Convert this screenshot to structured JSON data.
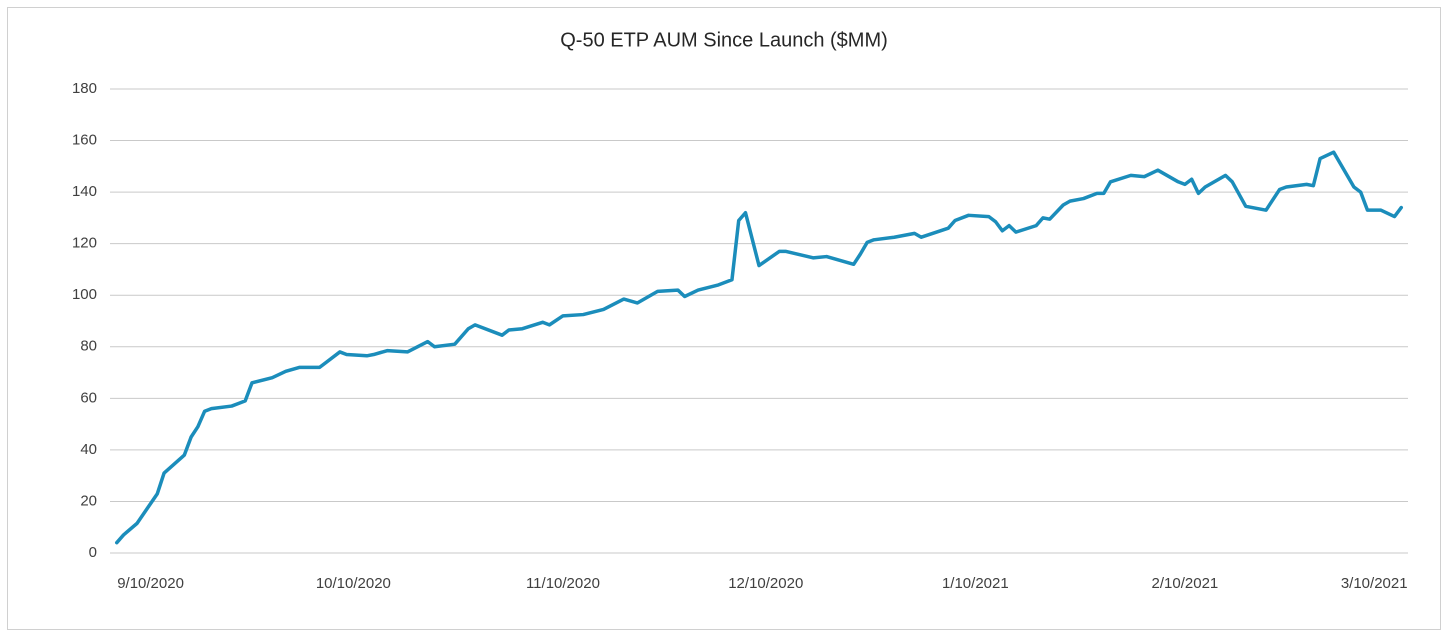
{
  "chart_data": {
    "type": "line",
    "title": "Q-50 ETP AUM Since Launch ($MM)",
    "x": [
      "9/5/2020",
      "9/6/2020",
      "9/8/2020",
      "9/11/2020",
      "9/12/2020",
      "9/15/2020",
      "9/16/2020",
      "9/17/2020",
      "9/18/2020",
      "9/19/2020",
      "9/22/2020",
      "9/23/2020",
      "9/24/2020",
      "9/25/2020",
      "9/28/2020",
      "9/30/2020",
      "10/2/2020",
      "10/5/2020",
      "10/6/2020",
      "10/8/2020",
      "10/9/2020",
      "10/12/2020",
      "10/13/2020",
      "10/15/2020",
      "10/18/2020",
      "10/21/2020",
      "10/22/2020",
      "10/25/2020",
      "10/27/2020",
      "10/28/2020",
      "11/1/2020",
      "11/2/2020",
      "11/4/2020",
      "11/7/2020",
      "11/8/2020",
      "11/10/2020",
      "11/13/2020",
      "11/16/2020",
      "11/19/2020",
      "11/21/2020",
      "11/24/2020",
      "11/27/2020",
      "11/28/2020",
      "11/30/2020",
      "12/3/2020",
      "12/5/2020",
      "12/6/2020",
      "12/7/2020",
      "12/9/2020",
      "12/12/2020",
      "12/13/2020",
      "12/17/2020",
      "12/19/2020",
      "12/23/2020",
      "12/24/2020",
      "12/25/2020",
      "12/26/2020",
      "12/29/2020",
      "1/1/2021",
      "1/2/2021",
      "1/6/2021",
      "1/7/2021",
      "1/9/2021",
      "1/12/2021",
      "1/13/2021",
      "1/14/2021",
      "1/15/2021",
      "1/16/2021",
      "1/19/2021",
      "1/20/2021",
      "1/21/2021",
      "1/23/2021",
      "1/24/2021",
      "1/26/2021",
      "1/28/2021",
      "1/29/2021",
      "1/30/2021",
      "2/2/2021",
      "2/4/2021",
      "2/6/2021",
      "2/9/2021",
      "2/10/2021",
      "2/11/2021",
      "2/12/2021",
      "2/13/2021",
      "2/16/2021",
      "2/17/2021",
      "2/19/2021",
      "2/22/2021",
      "2/24/2021",
      "2/25/2021",
      "2/28/2021",
      "3/1/2021",
      "3/2/2021",
      "3/4/2021",
      "3/7/2021",
      "3/8/2021",
      "3/9/2021",
      "3/11/2021",
      "3/13/2021",
      "3/14/2021"
    ],
    "values": [
      4,
      7,
      11.5,
      23,
      31,
      38,
      45,
      49,
      55,
      56,
      57,
      58,
      59,
      66,
      68,
      70.5,
      72,
      72,
      74,
      78,
      77,
      76.5,
      77,
      78.5,
      78,
      82,
      80,
      81,
      87,
      88.5,
      84.5,
      86.5,
      87,
      89.5,
      88.5,
      92,
      92.5,
      94.5,
      98.5,
      97,
      101.5,
      102,
      99.5,
      102,
      104,
      106,
      129,
      132,
      111.5,
      117,
      117,
      114.5,
      115,
      112,
      116,
      120.5,
      121.5,
      122.5,
      124,
      122.5,
      126,
      129,
      131,
      130.5,
      128.5,
      125,
      127,
      124.5,
      127,
      130,
      129.5,
      135,
      136.5,
      137.5,
      139.5,
      139.5,
      144,
      146.5,
      146,
      148.5,
      144,
      143,
      145,
      139.5,
      142,
      146.5,
      144,
      134.5,
      133,
      141,
      142,
      143,
      142.5,
      153,
      155.5,
      142,
      140,
      133,
      133,
      130.5,
      134
    ],
    "color": "#1b8dbb",
    "xlim": [
      "9/4/2020",
      "3/15/2021"
    ],
    "xticks": [
      "9/10/2020",
      "10/10/2020",
      "11/10/2020",
      "12/10/2020",
      "1/10/2021",
      "2/10/2021",
      "3/10/2021"
    ],
    "ylim": [
      0,
      180
    ],
    "yticks": [
      0,
      20,
      40,
      60,
      80,
      100,
      120,
      140,
      160,
      180
    ],
    "grid": true
  }
}
